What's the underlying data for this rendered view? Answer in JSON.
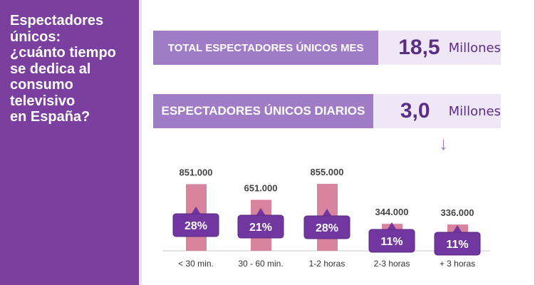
{
  "side_title": "Espectadores\núnicos:\n¿cuánto tiempo\nse dedica al\nconsumo\ntelevisivo\nen España?",
  "stats": [
    {
      "label": "TOTAL ESPECTADORES ÚNICOS  MES",
      "value": "18,5",
      "unit": "Millones"
    },
    {
      "label": "ESPECTADORES ÚNICOS DIARIOS",
      "value": "3,0",
      "unit": "Millones"
    }
  ],
  "arrow_icon": "↓",
  "colors": {
    "sidebar": "#7a3f9f",
    "bar": "#d9849f",
    "badge": "#7236a0"
  },
  "chart_data": {
    "type": "bar",
    "categories": [
      "< 30 min.",
      "30 - 60 min.",
      "1-2 horas",
      "2-3 horas",
      "+ 3 horas"
    ],
    "values": [
      851000,
      651000,
      855000,
      344000,
      336000
    ],
    "value_labels": [
      "851.000",
      "651.000",
      "855.000",
      "344.000",
      "336.000"
    ],
    "percent_labels": [
      "28%",
      "21%",
      "28%",
      "11%",
      "11%"
    ],
    "ylim": [
      0,
      855000
    ]
  }
}
